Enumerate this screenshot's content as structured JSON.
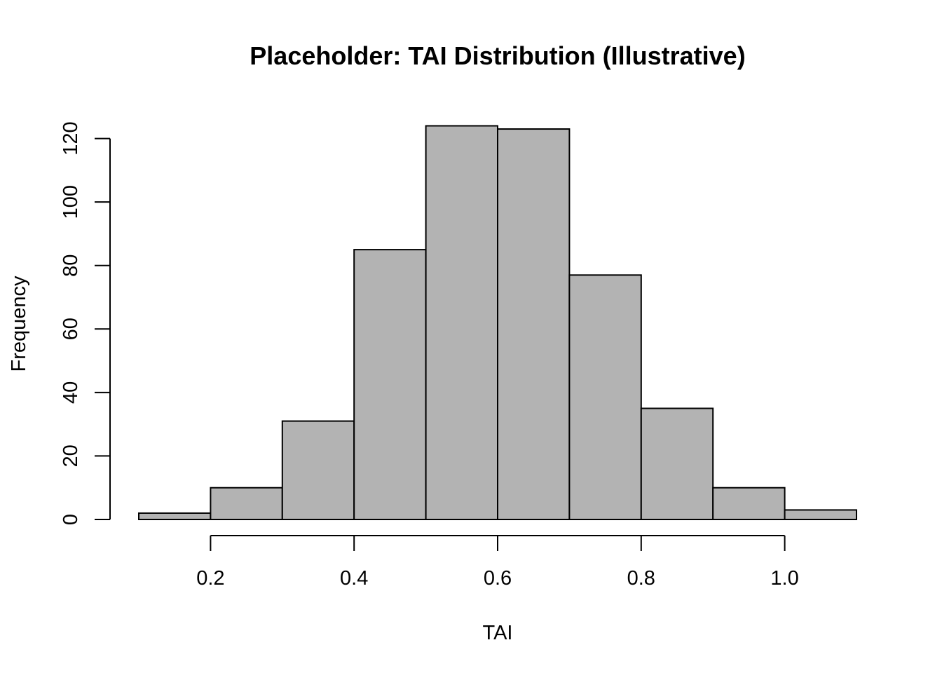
{
  "chart_data": {
    "type": "bar",
    "title": "Placeholder: TAI Distribution (Illustrative)",
    "xlabel": "TAI",
    "ylabel": "Frequency",
    "bin_edges": [
      0.1,
      0.2,
      0.3,
      0.4,
      0.5,
      0.6,
      0.7,
      0.8,
      0.9,
      1.0,
      1.1
    ],
    "values": [
      2,
      10,
      31,
      85,
      124,
      123,
      77,
      35,
      10,
      3
    ],
    "xlim": [
      0.1,
      1.1
    ],
    "ylim": [
      0,
      124
    ],
    "x_ticks": [
      0.2,
      0.4,
      0.6,
      0.8,
      1.0
    ],
    "x_tick_labels": [
      "0.2",
      "0.4",
      "0.6",
      "0.8",
      "1.0"
    ],
    "y_ticks": [
      0,
      20,
      40,
      60,
      80,
      100,
      120
    ],
    "y_tick_labels": [
      "0",
      "20",
      "40",
      "60",
      "80",
      "100",
      "120"
    ],
    "bar_color": "#b3b3b3",
    "grid": false,
    "legend": "none"
  }
}
